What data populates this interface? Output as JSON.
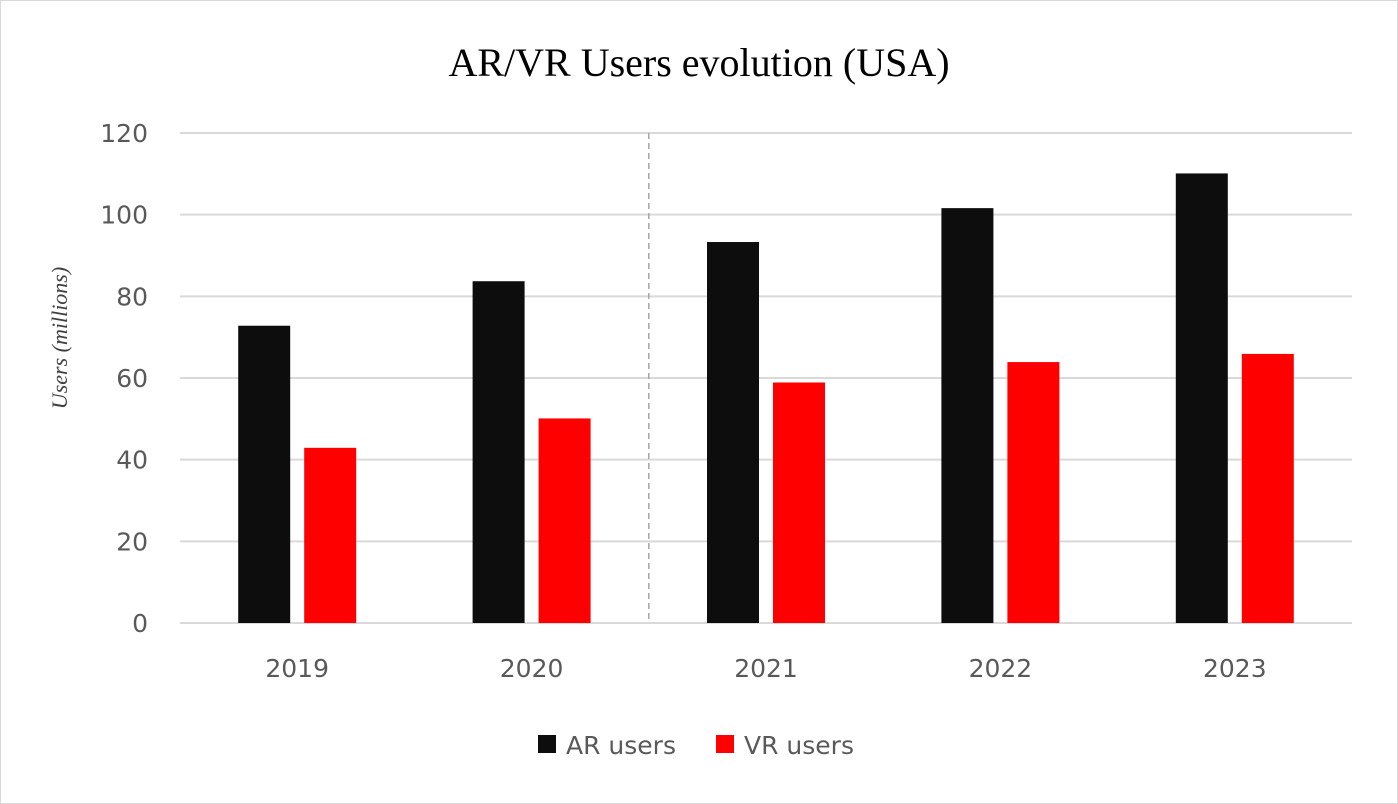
{
  "chart_data": {
    "type": "bar",
    "title": "AR/VR Users evolution (USA)",
    "xlabel": "",
    "ylabel": "Users (millions)",
    "categories": [
      "2019",
      "2020",
      "2021",
      "2022",
      "2023"
    ],
    "series": [
      {
        "name": "AR users",
        "color": "#0d0d0d",
        "values": [
          72.8,
          83.7,
          93.3,
          101.6,
          110.1
        ]
      },
      {
        "name": "VR users",
        "color": "#ff0000",
        "values": [
          42.9,
          50.1,
          58.9,
          63.9,
          65.9
        ]
      }
    ],
    "ylim": [
      0,
      120
    ],
    "yticks": [
      "0",
      "20",
      "40",
      "60",
      "80",
      "100",
      "120"
    ],
    "grid": true,
    "legend": "bottom",
    "annotations": [
      {
        "type": "vertical-dashed-divider",
        "between": [
          "2020",
          "2021"
        ]
      }
    ]
  },
  "colors": {
    "background": "#ffffff",
    "grid": "#d9d9d9",
    "axis": "#d9d9d9",
    "divider": "#a6a6a6",
    "text": "#595959"
  }
}
